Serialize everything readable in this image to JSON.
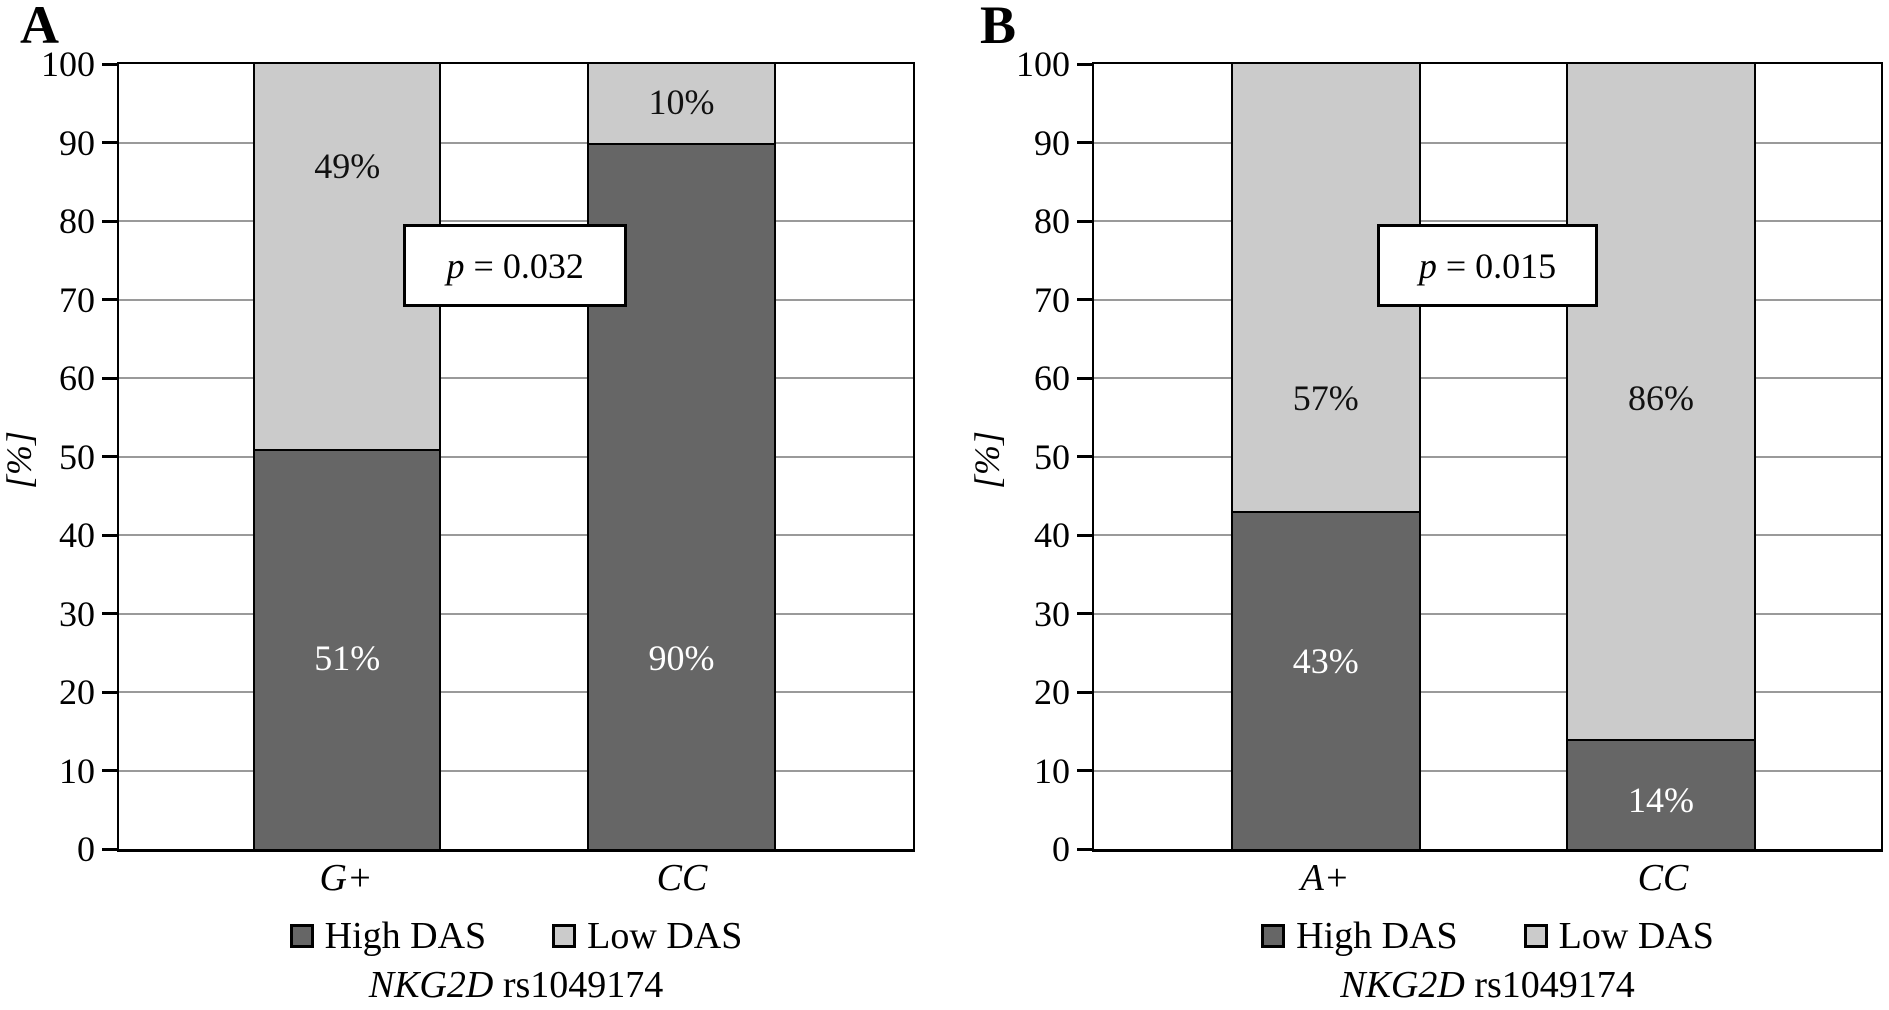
{
  "yticks": [
    "100",
    "90",
    "80",
    "70",
    "60",
    "50",
    "40",
    "30",
    "20",
    "10",
    "0"
  ],
  "chart_data": [
    {
      "type": "bar",
      "stacking": "percent",
      "panel": "A",
      "categories": [
        "G+",
        "CC"
      ],
      "series": [
        {
          "name": "High DAS",
          "values": [
            51,
            90
          ],
          "color": "#666666"
        },
        {
          "name": "Low DAS",
          "values": [
            49,
            10
          ],
          "color": "#cbcbcb"
        }
      ],
      "p_symbol": "p",
      "p_rest": " = 0.032",
      "annotation": "p = 0.032",
      "xlabel": "NKG2D rs1049174",
      "xlabel_italic": "NKG2D",
      "xlabel_rest": " rs1049174",
      "ylabel": "[%]",
      "ylim": [
        0,
        100
      ],
      "ytick_step": 10,
      "grid": true,
      "legend_position": "bottom"
    },
    {
      "type": "bar",
      "stacking": "percent",
      "panel": "B",
      "categories": [
        "A+",
        "CC"
      ],
      "series": [
        {
          "name": "High DAS",
          "values": [
            43,
            14
          ],
          "color": "#666666"
        },
        {
          "name": "Low DAS",
          "values": [
            57,
            86
          ],
          "color": "#cbcbcb"
        }
      ],
      "p_symbol": "p",
      "p_rest": " = 0.015",
      "annotation": "p = 0.015",
      "xlabel": "NKG2D rs1049174",
      "xlabel_italic": "NKG2D",
      "xlabel_rest": " rs1049174",
      "ylabel": "[%]",
      "ylim": [
        0,
        100
      ],
      "ytick_step": 10,
      "grid": true,
      "legend_position": "bottom"
    }
  ],
  "colors": {
    "high_das": "#666666",
    "low_das": "#cbcbcb",
    "gridline": "#9a9a9a"
  }
}
